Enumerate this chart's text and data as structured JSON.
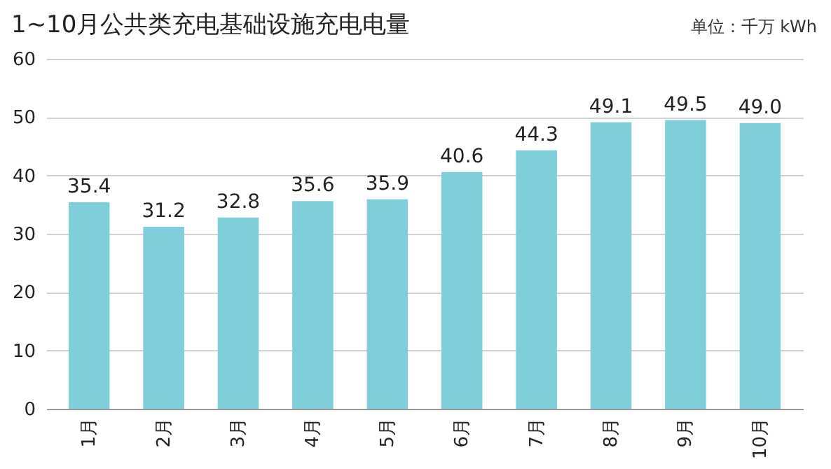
{
  "chart_data": {
    "type": "bar",
    "title": "1~10月公共类充电基础设施充电电量",
    "annotations": [
      "单位：千万 kWh"
    ],
    "categories": [
      "1月",
      "2月",
      "3月",
      "4月",
      "5月",
      "6月",
      "7月",
      "8月",
      "9月",
      "10月"
    ],
    "values": [
      35.4,
      31.2,
      32.8,
      35.6,
      35.9,
      40.6,
      44.3,
      49.1,
      49.5,
      49.0
    ],
    "value_labels": [
      "35.4",
      "31.2",
      "32.8",
      "35.6",
      "35.9",
      "40.6",
      "44.3",
      "49.1",
      "49.5",
      "49.0"
    ],
    "color": "#7ecfdb",
    "ylim": [
      0,
      60
    ],
    "yticks": [
      0,
      10,
      20,
      30,
      40,
      50,
      60
    ],
    "grid": "y"
  }
}
